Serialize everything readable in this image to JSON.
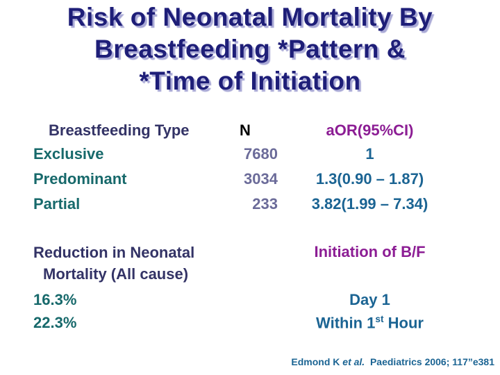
{
  "slide": {
    "title": {
      "lines": [
        "Risk of Neonatal Mortality By",
        "Breastfeeding *Pattern &",
        "*Time of Initiation"
      ]
    },
    "table": {
      "header": {
        "type": "Breastfeeding Type",
        "n": "N",
        "aor": "aOR(95%CI)"
      },
      "rows": [
        {
          "type": "Exclusive",
          "n": "7680",
          "aor": "1"
        },
        {
          "type": "Predominant",
          "n": "3034",
          "aor": "1.3(0.90 – 1.87)"
        },
        {
          "type": "Partial",
          "n": "233",
          "aor": "3.82(1.99 – 7.34)"
        }
      ]
    },
    "summary": {
      "left_header": {
        "line1": "Reduction in Neonatal",
        "line2": "Mortality (All cause)"
      },
      "right_header": "Initiation of B/F",
      "left_values": [
        "16.3%",
        "22.3%"
      ],
      "right_values": {
        "day1": "Day 1",
        "within_pre": "Within 1",
        "within_sup": "st",
        "within_post": " Hour"
      }
    },
    "footer": {
      "author": "Edmond K ",
      "et_al": "et al.",
      "citation": "  Paediatrics 2006; 117”e381"
    },
    "colors": {
      "title_navy": "#1e1e78",
      "title_shadow": "#a9a9d6",
      "header_indigo": "#333366",
      "accent_magenta": "#8c1d94",
      "teal": "#17696b",
      "steel_blue": "#1b6493",
      "n_value_gray_purple": "#6b6b99",
      "n_header_black": "#000000"
    }
  }
}
